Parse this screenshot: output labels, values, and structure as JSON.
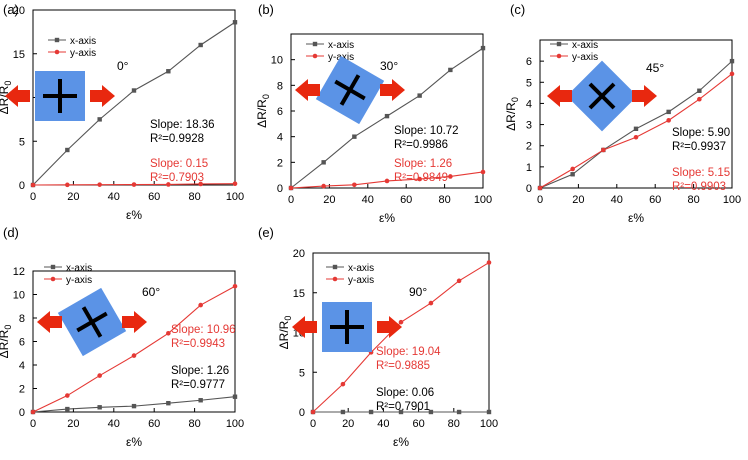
{
  "colors": {
    "x_series": "#555555",
    "y_series": "#e53935",
    "pad": "#5b93e6",
    "arrow": "#e8280f",
    "axis": "#000000",
    "label_black": "#000000",
    "label_red": "#e53935"
  },
  "common": {
    "xlabel": "ε%",
    "legend": [
      "x-axis",
      "y-axis"
    ]
  },
  "chart_data": [
    {
      "type": "line",
      "panel_label": "(a)",
      "angle_label": "0°",
      "x": [
        0,
        17,
        33,
        50,
        67,
        83,
        100
      ],
      "xlim": [
        0,
        100
      ],
      "xticks": [
        0,
        20,
        40,
        60,
        80,
        100
      ],
      "ylim": [
        0,
        20
      ],
      "yticks": [
        0,
        5,
        10,
        15,
        20
      ],
      "ylabel": "ΔR/R0",
      "xlabel": "ε%",
      "series": [
        {
          "name": "x-axis",
          "values": [
            0,
            4.0,
            7.5,
            10.8,
            13.0,
            16.0,
            18.6
          ]
        },
        {
          "name": "y-axis",
          "values": [
            0,
            0.02,
            0.04,
            0.05,
            0.06,
            0.12,
            0.15
          ]
        }
      ],
      "annotations": [
        {
          "series": "x-axis",
          "slope": "Slope: 18.36",
          "r2": "R²=0.9928"
        },
        {
          "series": "y-axis",
          "slope": "Slope: 0.15",
          "r2": "R²=0.7903"
        }
      ]
    },
    {
      "type": "line",
      "panel_label": "(b)",
      "angle_label": "30°",
      "x": [
        0,
        17,
        33,
        50,
        67,
        83,
        100
      ],
      "xlim": [
        0,
        100
      ],
      "xticks": [
        0,
        20,
        40,
        60,
        80,
        100
      ],
      "ylim": [
        0,
        12
      ],
      "yticks": [
        0,
        2,
        4,
        6,
        8,
        10
      ],
      "ylabel": "ΔR/R0",
      "xlabel": "ε%",
      "series": [
        {
          "name": "x-axis",
          "values": [
            0,
            2.0,
            4.0,
            5.6,
            7.2,
            9.2,
            10.9
          ]
        },
        {
          "name": "y-axis",
          "values": [
            0,
            0.15,
            0.25,
            0.55,
            0.7,
            0.9,
            1.25
          ]
        }
      ],
      "annotations": [
        {
          "series": "x-axis",
          "slope": "Slope: 10.72",
          "r2": "R²=0.9986"
        },
        {
          "series": "y-axis",
          "slope": "Slope: 1.26",
          "r2": "R²=0.9849"
        }
      ]
    },
    {
      "type": "line",
      "panel_label": "(c)",
      "angle_label": "45°",
      "x": [
        0,
        17,
        33,
        50,
        67,
        83,
        100
      ],
      "xlim": [
        0,
        100
      ],
      "xticks": [
        0,
        20,
        40,
        60,
        80,
        100
      ],
      "ylim": [
        0,
        7
      ],
      "yticks": [
        0,
        1,
        2,
        3,
        4,
        5,
        6
      ],
      "ylabel": "ΔR/R0",
      "xlabel": "ε%",
      "series": [
        {
          "name": "x-axis",
          "values": [
            0,
            0.65,
            1.8,
            2.8,
            3.6,
            4.6,
            6.0
          ]
        },
        {
          "name": "y-axis",
          "values": [
            0,
            0.9,
            1.8,
            2.4,
            3.2,
            4.2,
            5.4
          ]
        }
      ],
      "annotations": [
        {
          "series": "x-axis",
          "slope": "Slope: 5.90",
          "r2": "R²=0.9937"
        },
        {
          "series": "y-axis",
          "slope": "Slope: 5.15",
          "r2": "R²=0.9903"
        }
      ]
    },
    {
      "type": "line",
      "panel_label": "(d)",
      "angle_label": "60°",
      "x": [
        0,
        17,
        33,
        50,
        67,
        83,
        100
      ],
      "xlim": [
        0,
        100
      ],
      "xticks": [
        0,
        20,
        40,
        60,
        80,
        100
      ],
      "ylim": [
        0,
        12
      ],
      "yticks": [
        0,
        2,
        4,
        6,
        8,
        10,
        12
      ],
      "ylabel": "ΔR/R0",
      "xlabel": "ε%",
      "series": [
        {
          "name": "x-axis",
          "values": [
            0,
            0.25,
            0.4,
            0.5,
            0.75,
            1.0,
            1.3
          ]
        },
        {
          "name": "y-axis",
          "values": [
            0,
            1.4,
            3.1,
            4.8,
            6.7,
            9.1,
            10.7
          ]
        }
      ],
      "annotations": [
        {
          "series": "y-axis",
          "slope": "Slope: 10.96",
          "r2": "R²=0.9943"
        },
        {
          "series": "x-axis",
          "slope": "Slope: 1.26",
          "r2": "R²=0.9777"
        }
      ]
    },
    {
      "type": "line",
      "panel_label": "(e)",
      "angle_label": "90°",
      "x": [
        0,
        17,
        33,
        50,
        67,
        83,
        100
      ],
      "xlim": [
        0,
        100
      ],
      "xticks": [
        0,
        20,
        40,
        60,
        80,
        100
      ],
      "ylim": [
        0,
        20
      ],
      "yticks": [
        0,
        5,
        10,
        15,
        20
      ],
      "ylabel": "ΔR/R0",
      "xlabel": "ε%",
      "series": [
        {
          "name": "x-axis",
          "values": [
            0,
            0,
            0,
            0,
            0,
            0,
            0
          ]
        },
        {
          "name": "y-axis",
          "values": [
            0,
            3.5,
            7.5,
            11.3,
            13.7,
            16.5,
            18.8
          ]
        }
      ],
      "annotations": [
        {
          "series": "y-axis",
          "slope": "Slope: 19.04",
          "r2": "R²=0.9885"
        },
        {
          "series": "x-axis",
          "slope": "Slope: 0.06",
          "r2": "R²=0.7901"
        }
      ]
    }
  ]
}
